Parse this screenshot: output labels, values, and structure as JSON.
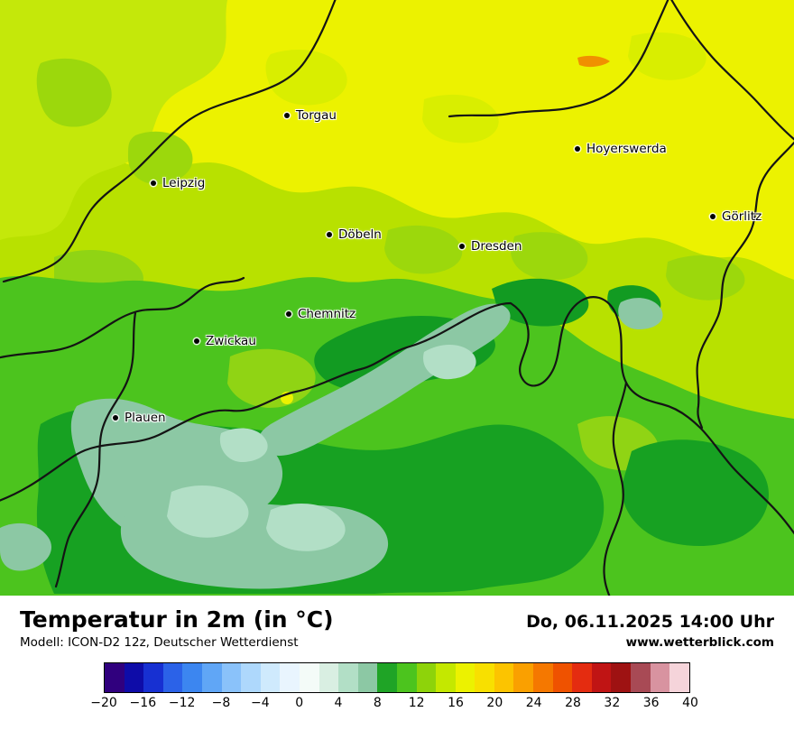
{
  "map": {
    "cities": [
      {
        "name": "Torgau"
      },
      {
        "name": "Hoyerswerda"
      },
      {
        "name": "Leipzig"
      },
      {
        "name": "Görlitz"
      },
      {
        "name": "Döbeln"
      },
      {
        "name": "Dresden"
      },
      {
        "name": "Chemnitz"
      },
      {
        "name": "Zwickau"
      },
      {
        "name": "Plauen"
      }
    ]
  },
  "footer": {
    "title": "Temperatur in 2m (in °C)",
    "datetime": "Do, 06.11.2025 14:00 Uhr",
    "model": "Modell: ICON-D2 12z, Deutscher Wetterdienst",
    "website": "www.wetterblick.com"
  },
  "colorbar": {
    "tick_labels": [
      "−20",
      "−16",
      "−12",
      "−8",
      "−4",
      "0",
      "4",
      "8",
      "12",
      "16",
      "20",
      "24",
      "28",
      "32",
      "36",
      "40"
    ],
    "colors": [
      "#30007e",
      "#0e0ca8",
      "#1730d2",
      "#2b62e8",
      "#3c86f0",
      "#60a6f6",
      "#8ac2fa",
      "#aed8fc",
      "#cfeafd",
      "#e9f5fe",
      "#f4fbf8",
      "#d9efe2",
      "#b2dfc6",
      "#8cc8a4",
      "#1fa426",
      "#4cc41e",
      "#8ed30a",
      "#c4e800",
      "#ecf200",
      "#f8e000",
      "#fcc400",
      "#faa000",
      "#f57800",
      "#ef5200",
      "#e42c10",
      "#c01414",
      "#9e1212",
      "#a84a55",
      "#d893a0",
      "#f5d4da"
    ]
  }
}
